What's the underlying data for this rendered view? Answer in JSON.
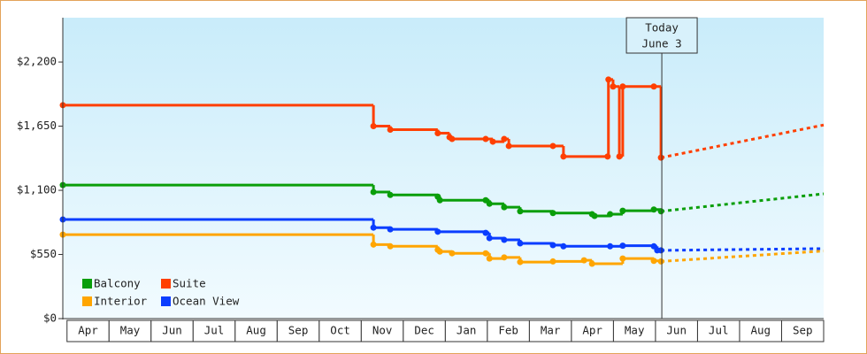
{
  "chart_data": {
    "type": "step-line",
    "xlim": [
      -0.1,
      18
    ],
    "ylim": [
      0,
      2580
    ],
    "yticks": [
      {
        "value": 0,
        "label": "$0"
      },
      {
        "value": 550,
        "label": "$550"
      },
      {
        "value": 1100,
        "label": "$1,100"
      },
      {
        "value": 1650,
        "label": "$1,650"
      },
      {
        "value": 2200,
        "label": "$2,200"
      }
    ],
    "xticks": [
      {
        "value": 0.5,
        "label": "Apr"
      },
      {
        "value": 1.5,
        "label": "May"
      },
      {
        "value": 2.5,
        "label": "Jun"
      },
      {
        "value": 3.5,
        "label": "Jul"
      },
      {
        "value": 4.5,
        "label": "Aug"
      },
      {
        "value": 5.5,
        "label": "Sep"
      },
      {
        "value": 6.5,
        "label": "Oct"
      },
      {
        "value": 7.5,
        "label": "Nov"
      },
      {
        "value": 8.5,
        "label": "Dec"
      },
      {
        "value": 9.5,
        "label": "Jan"
      },
      {
        "value": 10.5,
        "label": "Feb"
      },
      {
        "value": 11.5,
        "label": "Mar"
      },
      {
        "value": 12.5,
        "label": "Apr"
      },
      {
        "value": 13.5,
        "label": "May"
      },
      {
        "value": 14.5,
        "label": "Jun"
      },
      {
        "value": 15.5,
        "label": "Jul"
      },
      {
        "value": 16.5,
        "label": "Aug"
      },
      {
        "value": 17.5,
        "label": "Sep"
      }
    ],
    "today": {
      "x": 14.15,
      "label_lines": [
        "Today",
        "June 3"
      ]
    },
    "series": [
      {
        "name": "Balcony",
        "color": "#0a9e0a",
        "x": [
          -0.1,
          7.29,
          7.69,
          8.82,
          8.87,
          9.96,
          10.05,
          10.4,
          10.78,
          11.56,
          12.49,
          12.55,
          12.92,
          13.22,
          13.96,
          14.13
        ],
        "values": [
          1145,
          1085,
          1060,
          1045,
          1015,
          1015,
          985,
          955,
          920,
          905,
          895,
          880,
          895,
          925,
          935,
          920
        ],
        "projected_x": [
          14.13,
          18
        ],
        "projected_values": [
          920,
          1070
        ]
      },
      {
        "name": "Suite",
        "color": "#ff3f00",
        "x": [
          -0.1,
          7.29,
          7.69,
          8.82,
          9.1,
          9.16,
          9.96,
          10.13,
          10.4,
          10.51,
          11.56,
          11.81,
          12.86,
          12.88,
          12.99,
          13.14,
          13.22,
          13.96,
          14.13
        ],
        "values": [
          1830,
          1650,
          1620,
          1590,
          1555,
          1540,
          1540,
          1517,
          1540,
          1480,
          1480,
          1390,
          1390,
          2050,
          1990,
          1390,
          1990,
          1990,
          1380
        ],
        "projected_x": [
          14.13,
          18
        ],
        "projected_values": [
          1380,
          1660
        ]
      },
      {
        "name": "Interior",
        "color": "#ffa500",
        "x": [
          -0.1,
          7.29,
          7.69,
          8.82,
          8.87,
          9.16,
          9.96,
          10.05,
          10.4,
          10.78,
          11.56,
          12.3,
          12.49,
          13.22,
          13.96,
          14.13
        ],
        "values": [
          720,
          635,
          620,
          590,
          575,
          560,
          560,
          515,
          525,
          485,
          490,
          500,
          470,
          515,
          495,
          490
        ],
        "projected_x": [
          14.13,
          18
        ],
        "projected_values": [
          490,
          580
        ]
      },
      {
        "name": "Ocean View",
        "color": "#0a3dff",
        "x": [
          -0.1,
          7.29,
          7.69,
          8.82,
          9.96,
          10.05,
          10.4,
          10.78,
          11.56,
          11.81,
          12.92,
          13.22,
          13.96,
          14.04,
          14.13
        ],
        "values": [
          850,
          780,
          765,
          745,
          735,
          690,
          675,
          645,
          630,
          620,
          620,
          625,
          620,
          585,
          585
        ],
        "projected_x": [
          14.13,
          18
        ],
        "projected_values": [
          585,
          600
        ]
      }
    ]
  }
}
